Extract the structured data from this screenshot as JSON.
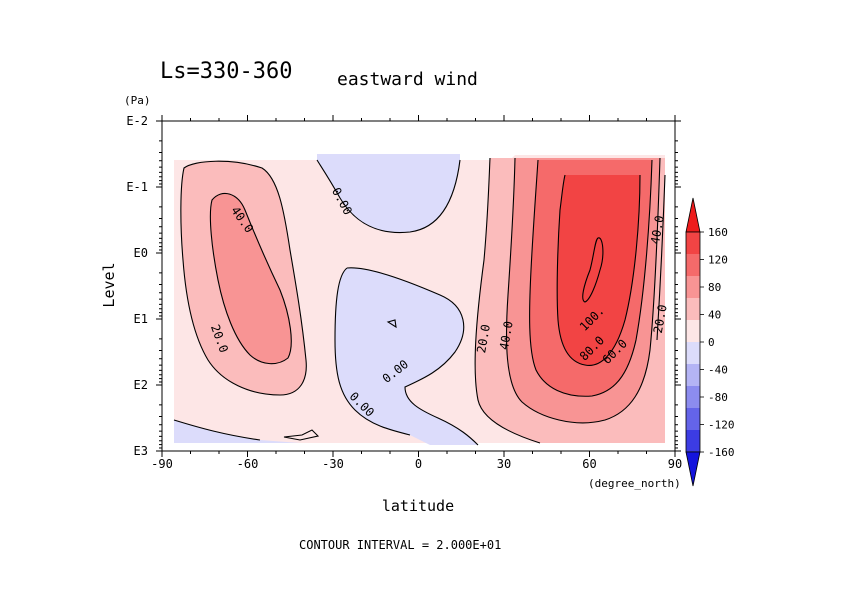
{
  "chart_data": {
    "type": "heatmap",
    "title_left": "Ls=330-360",
    "title_right": "eastward wind",
    "ylabel": "Level",
    "yunit": "(Pa)",
    "xlabel": "latitude",
    "xunit": "(degree_north)",
    "footer": "CONTOUR INTERVAL = 2.000E+01",
    "x_ticks": [
      "-90",
      "-60",
      "-30",
      "0",
      "30",
      "60",
      "90"
    ],
    "x_tick_values": [
      -90,
      -60,
      -30,
      0,
      30,
      60,
      90
    ],
    "y_ticks": [
      "E-2",
      "E-1",
      "E0",
      "E1",
      "E2",
      "E3"
    ],
    "y_tick_values": [
      -2,
      -1,
      0,
      1,
      2,
      3
    ],
    "xlim": [
      -90,
      90
    ],
    "ylim_log10_pa": [
      -2,
      3
    ],
    "y_axis_inverted": true,
    "contour_interval": 20,
    "colorbar": {
      "labels": [
        "160",
        "120",
        "80",
        "40",
        "0",
        "-40",
        "-80",
        "-120",
        "-160"
      ],
      "colors": [
        "#ee1c1c",
        "#f24444",
        "#f56a6a",
        "#f89494",
        "#fbbcbc",
        "#fde6e6",
        "#dcdcfb",
        "#b4b4f5",
        "#8c8cef",
        "#6464e9",
        "#3c3ce3",
        "#1414dd"
      ]
    },
    "contour_labels": [
      {
        "text": "40.0",
        "lat": -62,
        "lev": -0.5,
        "rot": 55
      },
      {
        "text": "20.0",
        "lat": -70,
        "lev": 1.3,
        "rot": 70
      },
      {
        "text": "0.00",
        "lat": -27,
        "lev": -0.78,
        "rot": 62
      },
      {
        "text": "0.00",
        "lat": -8,
        "lev": 1.8,
        "rot": -38
      },
      {
        "text": "0.00",
        "lat": -20,
        "lev": 2.3,
        "rot": 45
      },
      {
        "text": "20.0",
        "lat": 23,
        "lev": 1.3,
        "rot": -80
      },
      {
        "text": "40.0",
        "lat": 31,
        "lev": 1.25,
        "rot": -80
      },
      {
        "text": "100.",
        "lat": 61,
        "lev": 1.0,
        "rot": -45
      },
      {
        "text": "80.0",
        "lat": 61,
        "lev": 1.45,
        "rot": -45
      },
      {
        "text": "60.0",
        "lat": 69,
        "lev": 1.5,
        "rot": -45
      },
      {
        "text": "40.0",
        "lat": 84,
        "lev": -0.35,
        "rot": -80
      },
      {
        "text": "20.0",
        "lat": 85,
        "lev": 1.0,
        "rot": -80
      }
    ]
  }
}
